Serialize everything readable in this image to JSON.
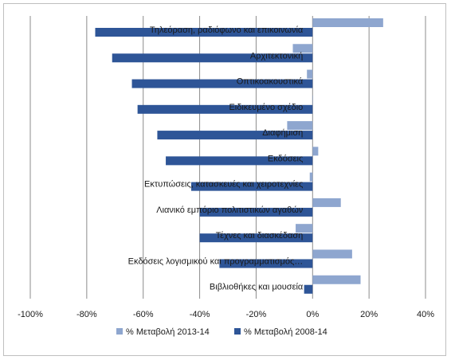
{
  "chart_data": {
    "type": "bar",
    "orientation": "horizontal",
    "categories": [
      "Τηλεόραση, ραδιόφωνο και επικοινωνία",
      "Αρχιτεκτονική",
      "Οπτικοακουστικά",
      "Ειδικευμένο σχέδιο",
      "Διαφήμιση",
      "Εκδόσεις",
      "Εκτυπώσεις, κατασκευές και χειροτεχνίες",
      "Λιανικό εμπόριο πολιτιστικών αγαθών",
      "Τέχνες και διασκέδαση",
      "Εκδόσεις λογισμικού και προγραμματισμός…",
      "Βιβλιοθήκες και μουσεία"
    ],
    "series": [
      {
        "name": "% Μεταβολή 2013-14",
        "color": "#8ea6cf",
        "values": [
          25,
          -7,
          -2,
          0,
          -9,
          2,
          -1,
          10,
          -6,
          14,
          17
        ]
      },
      {
        "name": "% Μεταβολή 2008-14",
        "color": "#2e5597",
        "values": [
          -77,
          -71,
          -64,
          -62,
          -55,
          -52,
          -43,
          -40,
          -40,
          -33,
          -3
        ]
      }
    ],
    "xlim": [
      -100,
      40
    ],
    "xticks": [
      -100,
      -80,
      -60,
      -40,
      -20,
      0,
      20,
      40
    ],
    "xtick_labels": [
      "-100%",
      "-80%",
      "-60%",
      "-40%",
      "-20%",
      "0%",
      "20%",
      "40%"
    ],
    "grid": true,
    "legend_position": "bottom"
  }
}
